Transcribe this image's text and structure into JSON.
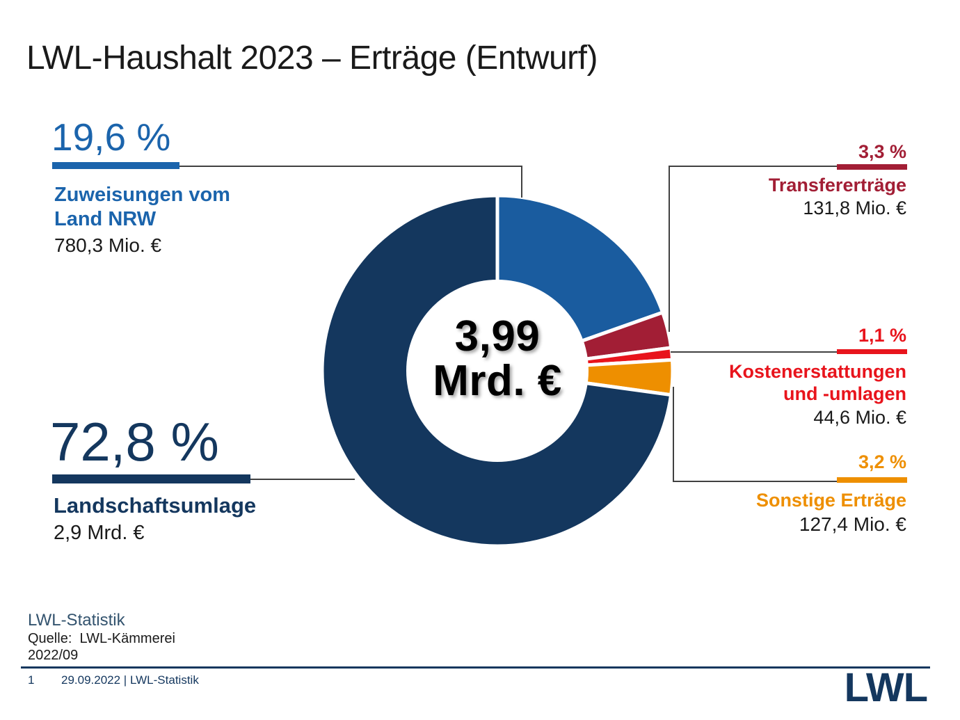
{
  "slide": {
    "title": "LWL-Haushalt 2023 – Erträge (Entwurf)"
  },
  "chart_data": {
    "type": "pie",
    "subtype": "donut",
    "title": "LWL-Haushalt 2023 – Erträge (Entwurf)",
    "center_total": "3,99 Mrd. €",
    "start_angle_deg": -90,
    "direction": "clockwise",
    "donut_hole_ratio": 0.52,
    "slices": [
      {
        "name": "Zuweisungen vom Land NRW",
        "percent": 19.6,
        "percent_label": "19,6 %",
        "amount_label": "780,3 Mio. €",
        "color": "#1A5C9F"
      },
      {
        "name": "Transfererträge",
        "percent": 3.3,
        "percent_label": "3,3 %",
        "amount_label": "131,8 Mio. €",
        "color": "#A21E35"
      },
      {
        "name": "Kostenerstattungen und -umlagen",
        "percent": 1.1,
        "percent_label": "1,1 %",
        "amount_label": "44,6 Mio. €",
        "color": "#E8141C"
      },
      {
        "name": "Sonstige Erträge",
        "percent": 3.2,
        "percent_label": "3,2 %",
        "amount_label": "127,4 Mio. €",
        "color": "#EE8F00"
      },
      {
        "name": "Landschaftsumlage",
        "percent": 72.8,
        "percent_label": "72,8 %",
        "amount_label": "2,9 Mrd. €",
        "color": "#14375E"
      }
    ]
  },
  "center": {
    "line1": "3,99",
    "line2": "Mrd. €"
  },
  "callouts": {
    "zuweisungen": {
      "percent": "19,6 %",
      "name_line1": "Zuweisungen vom",
      "name_line2": "Land NRW",
      "amount": "780,3 Mio. €"
    },
    "landschaftsumlage": {
      "percent": "72,8 %",
      "name": "Landschaftsumlage",
      "amount": "2,9 Mrd. €"
    },
    "transfer": {
      "percent": "3,3 %",
      "name": "Transfererträge",
      "amount": "131,8 Mio. €"
    },
    "kosten": {
      "percent": "1,1 %",
      "name_line1": "Kostenerstattungen",
      "name_line2": "und -umlagen",
      "amount": "44,6 Mio. €"
    },
    "sonstige": {
      "percent": "3,2 %",
      "name": "Sonstige Erträge",
      "amount": "127,4 Mio. €"
    }
  },
  "footer": {
    "org": "LWL-Statistik",
    "source": "Quelle:  LWL-Kämmerei",
    "issue": "2022/09",
    "page": "1",
    "meta": "29.09.2022 | LWL-Statistik",
    "logo": "LWL"
  },
  "colors": {
    "navy": "#14375E",
    "blue_slice": "#1A5C9F",
    "blue_text": "#1B64AC",
    "dark_red": "#A21E35",
    "bright_red": "#E8141C",
    "orange": "#EE8F00",
    "text_black": "#1A1A1A",
    "connector": "#404040",
    "footer_blue": "#33536E"
  }
}
